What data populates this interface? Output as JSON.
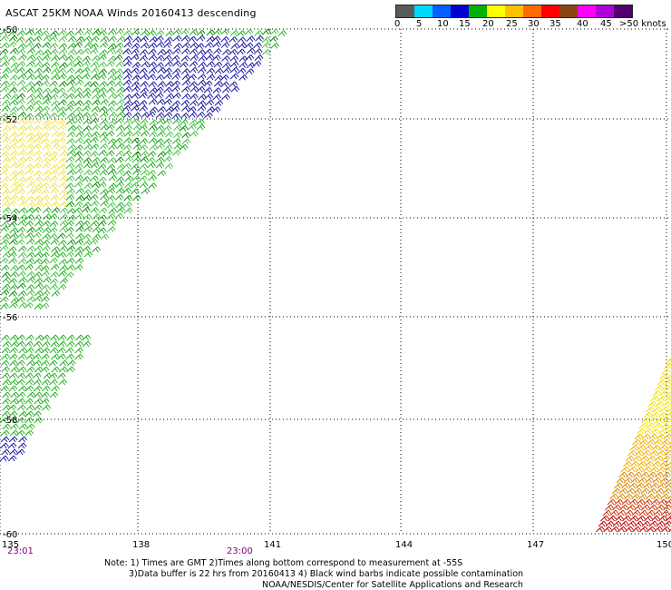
{
  "title": "ASCAT 25KM NOAA Winds 20160413 descending",
  "legend": {
    "colors": [
      "#5a5a5a",
      "#00d8ff",
      "#0060ff",
      "#0000d0",
      "#00b000",
      "#ffff00",
      "#ffc000",
      "#ff6a00",
      "#ff0000",
      "#8b4513",
      "#ff00ff",
      "#b000d8",
      "#500070"
    ],
    "labels": [
      "0",
      "5",
      "10",
      "15",
      "20",
      "25",
      "30",
      "35",
      "40",
      "45",
      ">50 knots"
    ]
  },
  "axes": {
    "lat_labels": [
      "-50",
      "-52",
      "-54",
      "-56",
      "-58",
      "-60"
    ],
    "lon_labels": [
      "135",
      "138",
      "141",
      "144",
      "147",
      "150"
    ]
  },
  "time_labels": [
    "23:01",
    "23:00"
  ],
  "notes": {
    "line1": "Note: 1) Times are GMT 2)Times along bottom correspond to measurement at -55S",
    "line2": "3)Data buffer is 22 hrs from 20160413 4) Black wind barbs indicate possible contamination",
    "line3": "NOAA/NESDIS/Center for Satellite Applications and Research"
  }
}
